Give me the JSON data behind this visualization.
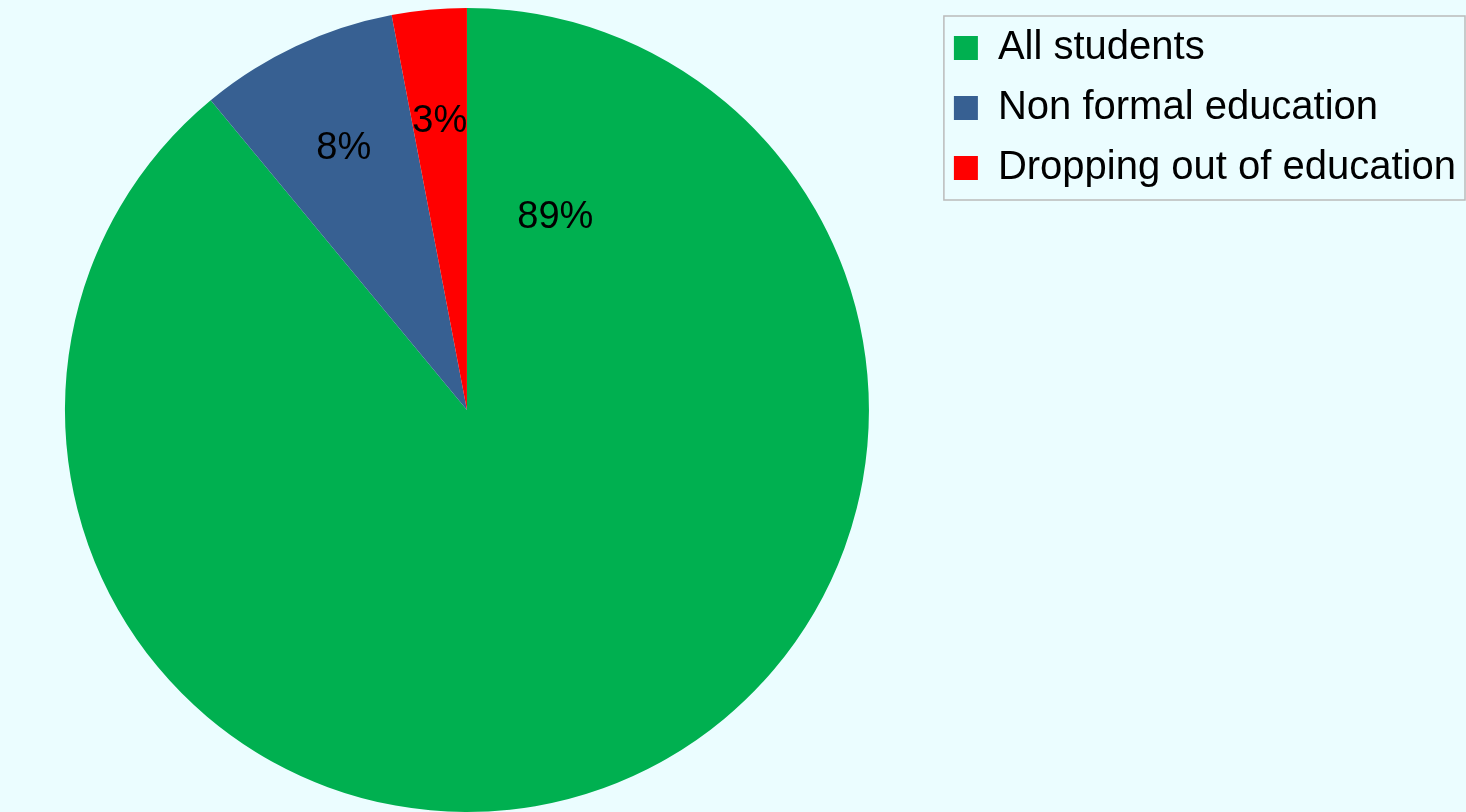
{
  "chart_data": {
    "type": "pie",
    "categories": [
      "All students",
      "Non formal education",
      "Dropping out of education"
    ],
    "values": [
      89,
      8,
      3
    ],
    "colors": [
      "#00b050",
      "#376092",
      "#ff0000"
    ],
    "value_labels": [
      "89%",
      "8%",
      "3%"
    ],
    "legend": "top right"
  }
}
